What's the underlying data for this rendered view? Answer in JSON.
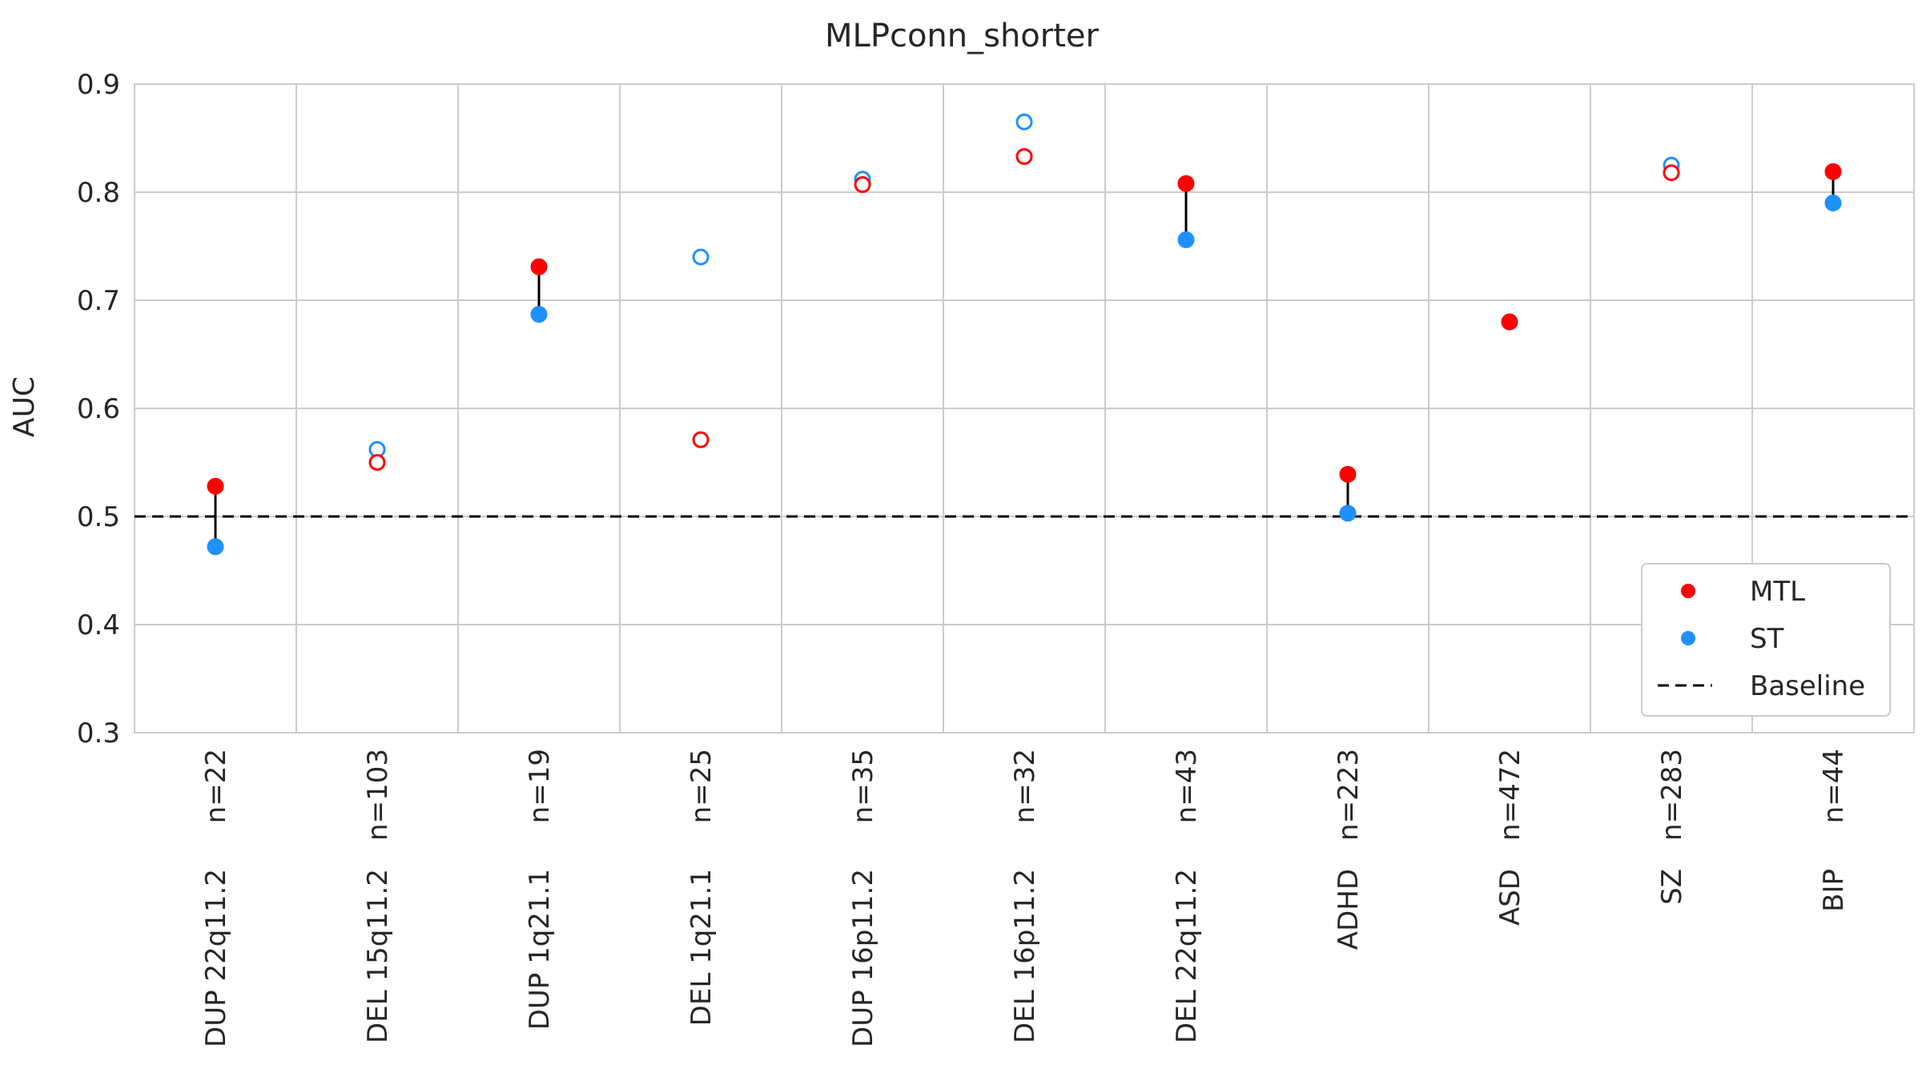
{
  "chart_data": {
    "type": "scatter",
    "title": "MLPconn_shorter",
    "ylabel": "AUC",
    "xlabel": "",
    "ylim": [
      0.3,
      0.9
    ],
    "yticks": [
      0.3,
      0.4,
      0.5,
      0.6,
      0.7,
      0.8,
      0.9
    ],
    "grid": true,
    "legend_position": "lower-right",
    "baseline": 0.5,
    "colors": {
      "MTL": "#ff0000",
      "ST": "#1e90ff",
      "Baseline": "#000000"
    },
    "categories": [
      {
        "label": "DUP 22q11.2",
        "n": "n=22",
        "mtl": 0.528,
        "st": 0.472,
        "significant": true
      },
      {
        "label": "DEL 15q11.2",
        "n": "n=103",
        "mtl": 0.55,
        "st": 0.562,
        "significant": false
      },
      {
        "label": "DUP 1q21.1",
        "n": "n=19",
        "mtl": 0.731,
        "st": 0.687,
        "significant": true
      },
      {
        "label": "DEL 1q21.1",
        "n": "n=25",
        "mtl": 0.571,
        "st": 0.74,
        "significant": false
      },
      {
        "label": "DUP 16p11.2",
        "n": "n=35",
        "mtl": 0.807,
        "st": 0.812,
        "significant": false
      },
      {
        "label": "DEL 16p11.2",
        "n": "n=32",
        "mtl": 0.833,
        "st": 0.865,
        "significant": false
      },
      {
        "label": "DEL 22q11.2",
        "n": "n=43",
        "mtl": 0.808,
        "st": 0.756,
        "significant": true
      },
      {
        "label": "ADHD",
        "n": "n=223",
        "mtl": 0.539,
        "st": 0.503,
        "significant": true
      },
      {
        "label": "ASD",
        "n": "n=472",
        "mtl": 0.68,
        "st": 0.68,
        "significant": true
      },
      {
        "label": "SZ",
        "n": "n=283",
        "mtl": 0.818,
        "st": 0.825,
        "significant": false
      },
      {
        "label": "BIP",
        "n": "n=44",
        "mtl": 0.819,
        "st": 0.79,
        "significant": true
      }
    ],
    "legend": [
      {
        "name": "MTL",
        "marker": "dot"
      },
      {
        "name": "ST",
        "marker": "dot"
      },
      {
        "name": "Baseline",
        "marker": "dashed-line"
      }
    ]
  }
}
